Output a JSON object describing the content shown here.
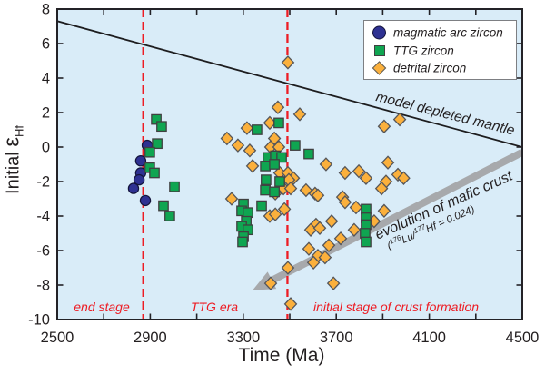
{
  "colors": {
    "plot_bg": "#d9ecf8",
    "frame": "#232227",
    "tick": "#232227",
    "text": "#231f20",
    "boundary_red": "#ed1c24",
    "annotation_red": "#ed1c24",
    "mantle_line": "#1d1d1f",
    "arrow_gray": "#a7a9ac",
    "marker_outline": "#55565a",
    "magmatic_blue": "#2e3192",
    "ttg_green": "#0fa551",
    "detrital_orange": "#fbb03c"
  },
  "legend": {
    "items": [
      {
        "label": "magmatic arc zircon",
        "marker": "circle",
        "color": "#2e3192"
      },
      {
        "label": "TTG zircon",
        "marker": "square",
        "color": "#0fa551"
      },
      {
        "label": "detrital zircon",
        "marker": "diamond",
        "color": "#fbb03c"
      }
    ]
  },
  "chart_data": {
    "type": "scatter",
    "xlabel": "Time (Ma)",
    "ylabel_parts": {
      "prefix": "Initial ",
      "symbol": "ε",
      "subscript": "Hf"
    },
    "xlim": [
      2500,
      4500
    ],
    "ylim": [
      -10,
      8
    ],
    "x_major_ticks": [
      2500,
      2900,
      3300,
      3700,
      4100,
      4500
    ],
    "x_minor_step": 200,
    "y_major_ticks": [
      8,
      6,
      4,
      2,
      0,
      -2,
      -4,
      -6,
      -8,
      -10
    ],
    "grid": false,
    "legend_position": "upper right",
    "series": [
      {
        "name": "detrital zircon",
        "marker": "diamond",
        "fill": "#fbb03c",
        "outline": "#55565a",
        "points": [
          [
            3492,
            4.9
          ],
          [
            3449,
            2.3
          ],
          [
            3543,
            1.9
          ],
          [
            3414,
            1.4
          ],
          [
            3316,
            1.1
          ],
          [
            3230,
            0.5
          ],
          [
            3277,
            0.1
          ],
          [
            3328,
            -0.2
          ],
          [
            3434,
            0.5
          ],
          [
            3418,
            0.0
          ],
          [
            3453,
            0.0
          ],
          [
            3906,
            1.2
          ],
          [
            3973,
            1.6
          ],
          [
            3340,
            -1.1
          ],
          [
            3457,
            -1.5
          ],
          [
            3492,
            -1.5
          ],
          [
            3516,
            -1.8
          ],
          [
            3496,
            -1.9
          ],
          [
            3438,
            -2.7
          ],
          [
            3473,
            -2.4
          ],
          [
            3504,
            -2.4
          ],
          [
            3570,
            -2.5
          ],
          [
            3609,
            -2.7
          ],
          [
            3621,
            -2.8
          ],
          [
            3250,
            -3.0
          ],
          [
            3656,
            -1.0
          ],
          [
            3727,
            -2.9
          ],
          [
            3738,
            -3.2
          ],
          [
            3738,
            -1.5
          ],
          [
            3797,
            -1.4
          ],
          [
            3828,
            -1.8
          ],
          [
            3922,
            -0.9
          ],
          [
            3965,
            -1.6
          ],
          [
            3990,
            -1.8
          ],
          [
            3914,
            -2.0
          ],
          [
            3895,
            -2.4
          ],
          [
            3414,
            -4.0
          ],
          [
            3438,
            -3.9
          ],
          [
            3477,
            -3.6
          ],
          [
            3785,
            -3.5
          ],
          [
            3906,
            -3.7
          ],
          [
            3863,
            -4.3
          ],
          [
            3613,
            -4.5
          ],
          [
            3680,
            -4.3
          ],
          [
            3777,
            -4.8
          ],
          [
            3719,
            -5.3
          ],
          [
            3668,
            -5.7
          ],
          [
            3590,
            -4.8
          ],
          [
            3629,
            -4.7
          ],
          [
            3582,
            -5.9
          ],
          [
            3621,
            -6.3
          ],
          [
            3652,
            -6.4
          ],
          [
            3602,
            -6.7
          ],
          [
            3492,
            -7.0
          ],
          [
            3418,
            -7.9
          ],
          [
            3688,
            -7.9
          ],
          [
            3504,
            -9.1
          ]
        ]
      },
      {
        "name": "magmatic arc zircon",
        "marker": "circle",
        "fill": "#2e3192",
        "outline": "#14143c",
        "points": [
          [
            2887,
            0.1
          ],
          [
            2859,
            -0.8
          ],
          [
            2859,
            -1.5
          ],
          [
            2852,
            -1.9
          ],
          [
            2828,
            -2.4
          ],
          [
            2879,
            -3.1
          ]
        ]
      },
      {
        "name": "TTG zircon",
        "marker": "square",
        "fill": "#0fa551",
        "outline": "#404041",
        "points": [
          [
            2926,
            1.6
          ],
          [
            2949,
            1.2
          ],
          [
            2930,
            0.2
          ],
          [
            2898,
            -0.3
          ],
          [
            2898,
            -1.2
          ],
          [
            2918,
            -1.5
          ],
          [
            3004,
            -2.3
          ],
          [
            2957,
            -3.4
          ],
          [
            2984,
            -4.0
          ],
          [
            3453,
            1.4
          ],
          [
            3359,
            1.0
          ],
          [
            3523,
            0.1
          ],
          [
            3582,
            -0.4
          ],
          [
            3406,
            -0.6
          ],
          [
            3438,
            -0.5
          ],
          [
            3465,
            -0.6
          ],
          [
            3395,
            -1.1
          ],
          [
            3434,
            -1.0
          ],
          [
            3398,
            -1.9
          ],
          [
            3457,
            -2.0
          ],
          [
            3395,
            -2.5
          ],
          [
            3434,
            -2.6
          ],
          [
            3379,
            -3.4
          ],
          [
            3301,
            -3.3
          ],
          [
            3293,
            -3.7
          ],
          [
            3320,
            -3.8
          ],
          [
            3313,
            -4.3
          ],
          [
            3293,
            -4.6
          ],
          [
            3320,
            -4.8
          ],
          [
            3301,
            -5.2
          ],
          [
            3297,
            -5.5
          ],
          [
            3828,
            -3.6
          ],
          [
            3828,
            -4.1
          ],
          [
            3828,
            -4.5
          ],
          [
            3824,
            -5.0
          ],
          [
            3828,
            -5.5
          ]
        ]
      }
    ],
    "reference_line": {
      "label": "model depleted mantle",
      "from": [
        2500,
        7.3
      ],
      "to": [
        4500,
        0.0
      ]
    },
    "stage_boundaries": [
      2870,
      3490
    ],
    "stage_labels": [
      {
        "text": "end stage",
        "time": 2690,
        "ehf": -9.2
      },
      {
        "text": "TTG era",
        "time": 3175,
        "ehf": -9.2
      },
      {
        "text": "initial stage of crust formation",
        "time": 3955,
        "ehf": -9.2
      }
    ],
    "trend_arrow": {
      "label": "evolution of mafic crust",
      "sublabel_parts": {
        "open": "(",
        "sup1": "176",
        "mid": "Lu/",
        "sup2": "177",
        "rest": "Hf = 0.024)"
      },
      "from": [
        4500,
        -0.3
      ],
      "to": [
        3340,
        -8.3
      ]
    }
  }
}
